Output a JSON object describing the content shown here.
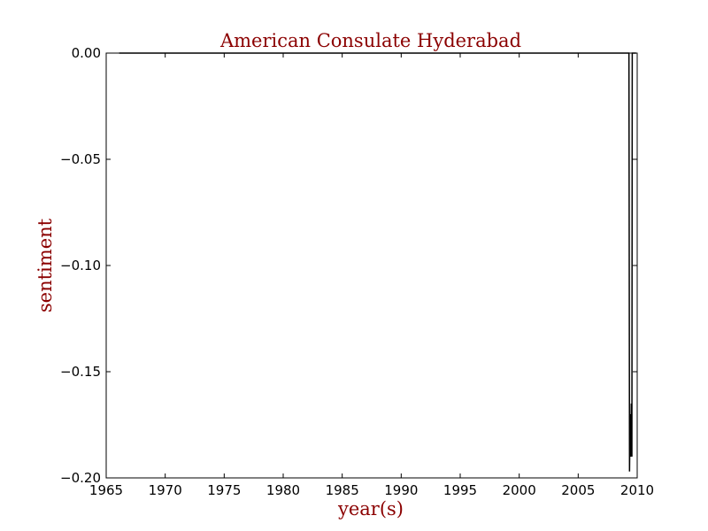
{
  "colors": {
    "title": "#8b0000",
    "line": "#000000",
    "axes": "#000000",
    "background": "#ffffff"
  },
  "chart_data": {
    "type": "line",
    "title": "American Consulate Hyderabad",
    "xlabel": "year(s)",
    "ylabel": "sentiment",
    "xlim": [
      1965,
      2010
    ],
    "ylim": [
      -0.2,
      0.0
    ],
    "xticks": [
      1965,
      1970,
      1975,
      1980,
      1985,
      1990,
      1995,
      2000,
      2005,
      2010
    ],
    "xtick_labels": [
      "1965",
      "1970",
      "1975",
      "1980",
      "1985",
      "1990",
      "1995",
      "2000",
      "2005",
      "2010"
    ],
    "yticks": [
      0.0,
      -0.05,
      -0.1,
      -0.15,
      -0.2
    ],
    "ytick_labels": [
      "0.00",
      "−0.05",
      "−0.10",
      "−0.15",
      "−0.20"
    ],
    "grid": false,
    "legend": "none",
    "series": [
      {
        "x": [
          1966.1,
          2009.3,
          2009.35,
          2009.4,
          2009.45,
          2009.5,
          2009.55,
          2009.58,
          2009.62,
          2009.66,
          2009.7,
          2009.9
        ],
        "y": [
          0.0,
          0.0,
          -0.197,
          -0.17,
          -0.19,
          -0.165,
          -0.19,
          0.0,
          0.0,
          0.0,
          0.0,
          0.0
        ]
      }
    ]
  }
}
